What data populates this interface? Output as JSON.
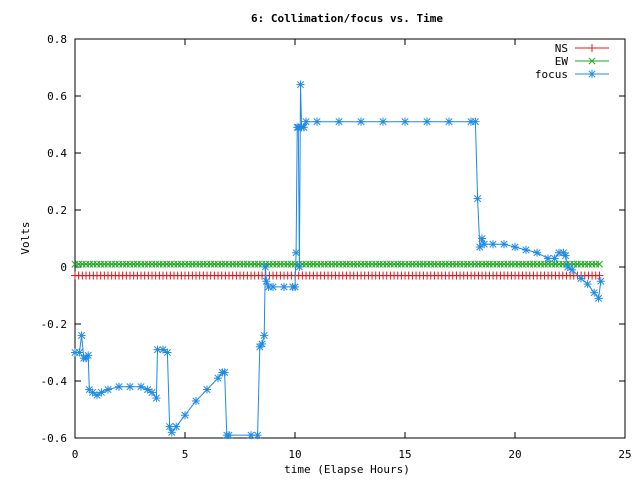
{
  "chart_data": {
    "type": "line",
    "title": "6: Collimation/focus vs. Time",
    "xlabel": "time (Elapse Hours)",
    "ylabel": "Volts",
    "xlim": [
      0,
      25
    ],
    "ylim": [
      -0.6,
      0.8
    ],
    "xticks": [
      0,
      5,
      10,
      15,
      20,
      25
    ],
    "yticks": [
      -0.6,
      -0.4,
      -0.2,
      0,
      0.2,
      0.4,
      0.6,
      0.8
    ],
    "legend_position": "top-right",
    "series": [
      {
        "name": "NS",
        "color": "#e0161b",
        "marker": "plus",
        "x": [
          0,
          24
        ],
        "y": [
          -0.03,
          -0.03
        ],
        "marker_step": 0.1667
      },
      {
        "name": "EW",
        "color": "#1ea51e",
        "marker": "cross",
        "x": [
          0,
          24
        ],
        "y": [
          0.01,
          0.01
        ],
        "marker_step": 0.1667
      },
      {
        "name": "focus",
        "color": "#1e8ae4",
        "marker": "star",
        "points": [
          [
            0.0,
            -0.3
          ],
          [
            0.2,
            -0.3
          ],
          [
            0.3,
            -0.24
          ],
          [
            0.4,
            -0.32
          ],
          [
            0.5,
            -0.32
          ],
          [
            0.6,
            -0.31
          ],
          [
            0.65,
            -0.43
          ],
          [
            0.8,
            -0.44
          ],
          [
            1.0,
            -0.45
          ],
          [
            1.2,
            -0.44
          ],
          [
            1.5,
            -0.43
          ],
          [
            2.0,
            -0.42
          ],
          [
            2.5,
            -0.42
          ],
          [
            3.0,
            -0.42
          ],
          [
            3.3,
            -0.43
          ],
          [
            3.5,
            -0.44
          ],
          [
            3.7,
            -0.46
          ],
          [
            3.75,
            -0.29
          ],
          [
            4.0,
            -0.29
          ],
          [
            4.2,
            -0.3
          ],
          [
            4.3,
            -0.56
          ],
          [
            4.4,
            -0.58
          ],
          [
            4.6,
            -0.56
          ],
          [
            5.0,
            -0.52
          ],
          [
            5.5,
            -0.47
          ],
          [
            6.0,
            -0.43
          ],
          [
            6.5,
            -0.39
          ],
          [
            6.7,
            -0.37
          ],
          [
            6.8,
            -0.37
          ],
          [
            6.9,
            -0.59
          ],
          [
            7.0,
            -0.59
          ],
          [
            8.0,
            -0.59
          ],
          [
            8.3,
            -0.59
          ],
          [
            8.4,
            -0.28
          ],
          [
            8.5,
            -0.27
          ],
          [
            8.6,
            -0.24
          ],
          [
            8.65,
            0.0
          ],
          [
            8.7,
            -0.05
          ],
          [
            8.8,
            -0.07
          ],
          [
            9.0,
            -0.07
          ],
          [
            9.5,
            -0.07
          ],
          [
            9.9,
            -0.07
          ],
          [
            10.0,
            -0.07
          ],
          [
            10.05,
            0.05
          ],
          [
            10.1,
            0.49
          ],
          [
            10.15,
            0.49
          ],
          [
            10.2,
            0.0
          ],
          [
            10.25,
            0.64
          ],
          [
            10.3,
            0.49
          ],
          [
            10.4,
            0.49
          ],
          [
            10.5,
            0.51
          ],
          [
            11.0,
            0.51
          ],
          [
            12.0,
            0.51
          ],
          [
            13.0,
            0.51
          ],
          [
            14.0,
            0.51
          ],
          [
            15.0,
            0.51
          ],
          [
            16.0,
            0.51
          ],
          [
            17.0,
            0.51
          ],
          [
            18.0,
            0.51
          ],
          [
            18.2,
            0.51
          ],
          [
            18.3,
            0.24
          ],
          [
            18.4,
            0.07
          ],
          [
            18.5,
            0.1
          ],
          [
            18.6,
            0.08
          ],
          [
            19.0,
            0.08
          ],
          [
            19.5,
            0.08
          ],
          [
            20.0,
            0.07
          ],
          [
            20.5,
            0.06
          ],
          [
            21.0,
            0.05
          ],
          [
            21.5,
            0.03
          ],
          [
            21.8,
            0.03
          ],
          [
            22.0,
            0.05
          ],
          [
            22.2,
            0.05
          ],
          [
            22.3,
            0.04
          ],
          [
            22.4,
            0.0
          ],
          [
            22.6,
            -0.01
          ],
          [
            23.0,
            -0.04
          ],
          [
            23.3,
            -0.06
          ],
          [
            23.6,
            -0.09
          ],
          [
            23.8,
            -0.11
          ],
          [
            23.9,
            -0.05
          ]
        ]
      }
    ]
  }
}
